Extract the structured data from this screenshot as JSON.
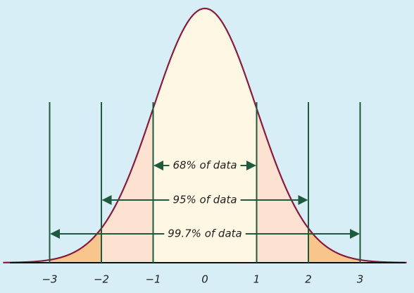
{
  "axis": {
    "ticks": [
      {
        "value": -3,
        "label": "−3"
      },
      {
        "value": -2,
        "label": "−2"
      },
      {
        "value": -1,
        "label": "−1"
      },
      0,
      1,
      2,
      3
    ]
  },
  "annotations": [
    "68% of data",
    "95% of data",
    "99.7% of data"
  ]
}
